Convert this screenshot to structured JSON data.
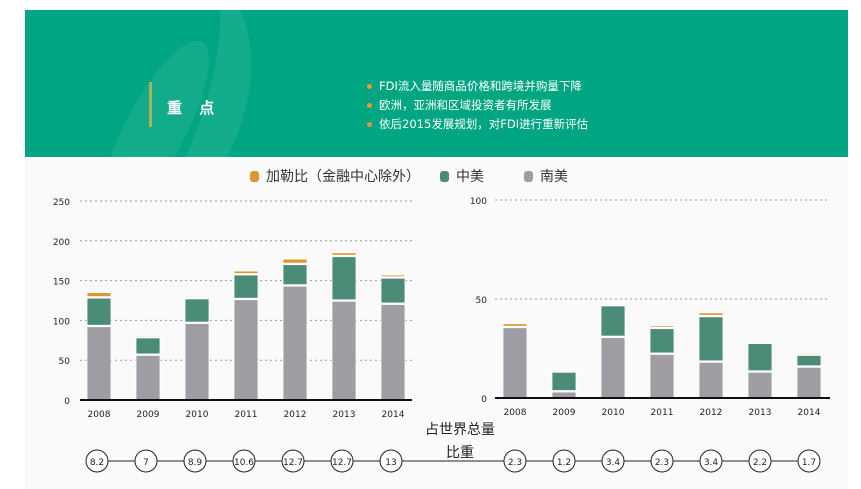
{
  "header": {
    "title": "重 点",
    "bullets": [
      "FDI流入量随商品价格和跨境并购量下降",
      "欧洲，亚洲和区域投资者有所发展",
      "依后2015发展规划，对FDI进行重新评估"
    ],
    "band_color": "#00a682"
  },
  "legend": [
    {
      "label": "加勒比（金融中心除外）",
      "color": "#e0962f"
    },
    {
      "label": "中美",
      "color": "#4a8c78"
    },
    {
      "label": "南美",
      "color": "#9e9da3"
    }
  ],
  "share": {
    "label_line1": "占世界总量",
    "label_line2": "比重",
    "left": [
      "8.2",
      "7",
      "8.9",
      "10.6",
      "12.7",
      "12.7",
      "13"
    ],
    "right": [
      "2.3",
      "1.2",
      "3.4",
      "2.3",
      "3.4",
      "2.2",
      "1.7"
    ]
  },
  "chart_data": [
    {
      "type": "bar",
      "stacked": true,
      "categories": [
        "2008",
        "2009",
        "2010",
        "2011",
        "2012",
        "2013",
        "2014"
      ],
      "yticks": [
        "0",
        "50",
        "100",
        "150",
        "200",
        "250"
      ],
      "ylim": [
        0,
        250
      ],
      "series": [
        {
          "name": "南美",
          "values": [
            92,
            56,
            96,
            126,
            143,
            124,
            120
          ]
        },
        {
          "name": "中美",
          "values": [
            36,
            22,
            31,
            31,
            27,
            56,
            33
          ]
        },
        {
          "name": "加勒比（金融中心除外）",
          "values": [
            7,
            3,
            3,
            5,
            7,
            5,
            4
          ]
        }
      ]
    },
    {
      "type": "bar",
      "stacked": true,
      "categories": [
        "2008",
        "2009",
        "2010",
        "2011",
        "2012",
        "2013",
        "2014"
      ],
      "yticks": [
        "0",
        "50",
        "100"
      ],
      "ylim": [
        0,
        100
      ],
      "series": [
        {
          "name": "南美",
          "values": [
            35.5,
            3,
            30.5,
            22,
            18,
            13,
            15.5
          ]
        },
        {
          "name": "中美",
          "values": [
            0,
            10,
            16,
            13,
            23,
            14.5,
            6
          ]
        },
        {
          "name": "加勒比（金融中心除外）",
          "values": [
            2,
            0,
            0,
            1.5,
            2,
            0,
            1
          ]
        }
      ]
    }
  ]
}
